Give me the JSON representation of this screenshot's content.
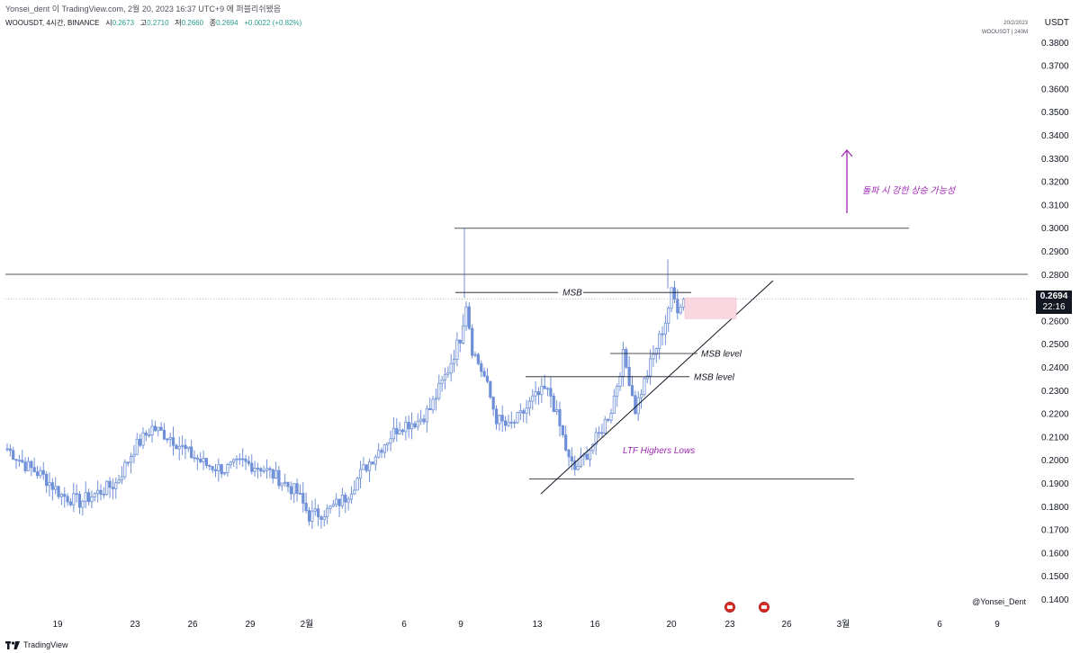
{
  "header": {
    "title": "Yonsei_dent 이 TradingView.com, 2월 20, 2023 16:37 UTC+9 에 퍼블리쉬됐음"
  },
  "symbol_bar": {
    "symbol": "WOOUSDT, 4시간, BINANCE",
    "open_label": "시",
    "open": "0.2673",
    "high_label": "고",
    "high": "0.2710",
    "low_label": "저",
    "low": "0.2660",
    "close_label": "종",
    "close": "0.2694",
    "change": "+0.0022 (+0.82%)"
  },
  "top_right": {
    "date": "20/2/2023",
    "symbol_tf": "WOOUSDT | 240M"
  },
  "currency": "USDT",
  "last_price": {
    "price": "0.2694",
    "countdown": "22:16"
  },
  "watermark": "@Yonsei_Dent",
  "footer": {
    "brand": "TradingView"
  },
  "icons": {
    "flag": "us-flag-icon",
    "logo": "tradingview-logo-icon"
  },
  "colors": {
    "candle": "#6f90d8",
    "accent": "#9c27b0",
    "zone": "#f8d7e0",
    "line": "#131722"
  },
  "chart_data": {
    "type": "candlestick",
    "title": "",
    "ylabel": "USDT",
    "ylim": [
      0.135,
      0.385
    ],
    "y_ticks": [
      "0.3800",
      "0.3700",
      "0.3600",
      "0.3500",
      "0.3400",
      "0.3300",
      "0.3200",
      "0.3100",
      "0.3000",
      "0.2900",
      "0.2800",
      "0.2600",
      "0.2500",
      "0.2400",
      "0.2300",
      "0.2200",
      "0.2100",
      "0.2000",
      "0.1900",
      "0.1800",
      "0.1700",
      "0.1600",
      "0.1500",
      "0.1400"
    ],
    "x_ticks": [
      "19",
      "23",
      "26",
      "29",
      "2월",
      "6",
      "9",
      "13",
      "16",
      "20",
      "23",
      "26",
      "3월",
      "6",
      "9"
    ],
    "series_close_anchors": [
      [
        0,
        0.205
      ],
      [
        6,
        0.198
      ],
      [
        12,
        0.193
      ],
      [
        18,
        0.185
      ],
      [
        24,
        0.182
      ],
      [
        30,
        0.186
      ],
      [
        36,
        0.19
      ],
      [
        42,
        0.205
      ],
      [
        48,
        0.214
      ],
      [
        54,
        0.21
      ],
      [
        60,
        0.203
      ],
      [
        66,
        0.198
      ],
      [
        72,
        0.196
      ],
      [
        78,
        0.199
      ],
      [
        84,
        0.197
      ],
      [
        90,
        0.192
      ],
      [
        96,
        0.186
      ],
      [
        100,
        0.176
      ],
      [
        106,
        0.178
      ],
      [
        112,
        0.184
      ],
      [
        118,
        0.196
      ],
      [
        124,
        0.206
      ],
      [
        130,
        0.215
      ],
      [
        136,
        0.217
      ],
      [
        140,
        0.222
      ],
      [
        146,
        0.239
      ],
      [
        150,
        0.253
      ],
      [
        152,
        0.268
      ],
      [
        154,
        0.248
      ],
      [
        158,
        0.236
      ],
      [
        162,
        0.218
      ],
      [
        166,
        0.214
      ],
      [
        170,
        0.219
      ],
      [
        174,
        0.226
      ],
      [
        178,
        0.23
      ],
      [
        180,
        0.228
      ],
      [
        184,
        0.21
      ],
      [
        186,
        0.2
      ],
      [
        188,
        0.196
      ],
      [
        192,
        0.203
      ],
      [
        196,
        0.211
      ],
      [
        200,
        0.222
      ],
      [
        202,
        0.233
      ],
      [
        204,
        0.245
      ],
      [
        206,
        0.235
      ],
      [
        208,
        0.222
      ],
      [
        210,
        0.23
      ],
      [
        214,
        0.245
      ],
      [
        218,
        0.26
      ],
      [
        220,
        0.272
      ],
      [
        222,
        0.266
      ],
      [
        224,
        0.27
      ]
    ],
    "levels": [
      {
        "label": "",
        "price": 0.3
      },
      {
        "label": "",
        "price": 0.2801
      },
      {
        "label": "MSB",
        "price": 0.2723
      },
      {
        "label": "MSB level",
        "price": 0.246
      },
      {
        "label": "MSB level",
        "price": 0.236
      },
      {
        "label": "",
        "price": 0.192
      }
    ],
    "annotations": [
      {
        "text": "돌파 시 강한 상승 가능성"
      },
      {
        "text": "LTF Highers Lows"
      }
    ],
    "last_price": 0.2694
  }
}
